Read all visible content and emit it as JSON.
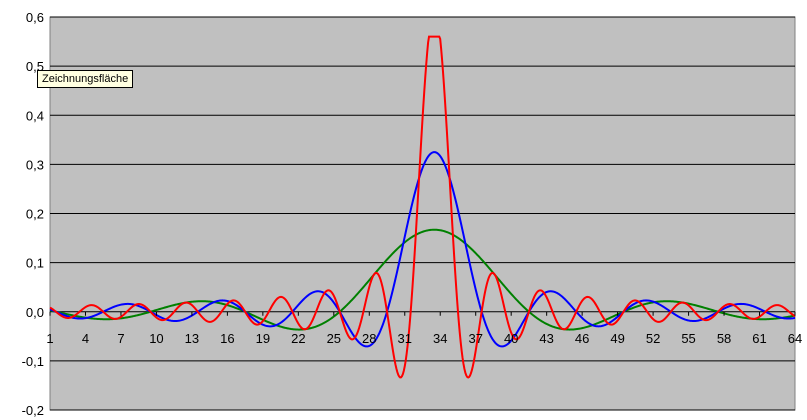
{
  "tooltip": {
    "text": "Zeichnungsfläche"
  },
  "chart_data": {
    "type": "line",
    "title": "",
    "xlabel": "",
    "ylabel": "",
    "x_range": [
      1,
      64
    ],
    "x_tick_labels": [
      "1",
      "4",
      "7",
      "10",
      "13",
      "16",
      "19",
      "22",
      "25",
      "28",
      "31",
      "34",
      "37",
      "40",
      "43",
      "46",
      "49",
      "52",
      "55",
      "58",
      "61",
      "64"
    ],
    "ylim": [
      -0.2,
      0.6
    ],
    "y_tick_labels": [
      "-0,2",
      "-0,1",
      "0,0",
      "0,1",
      "0,2",
      "0,3",
      "0,4",
      "0,5",
      "0,6"
    ],
    "grid": "horizontal",
    "plot_background": "#c0c0c0",
    "gridline_color": "#000000",
    "legend": "none",
    "series": [
      {
        "color": "#008000",
        "peak_x": 33.5,
        "peak_y": 0.167,
        "frequency": 0.125,
        "note_shape": "sinc"
      },
      {
        "color": "#0000ff",
        "peak_x": 33.5,
        "peak_y": 0.325,
        "frequency": 0.25,
        "note_shape": "sinc"
      },
      {
        "color": "#ff0000",
        "peak_x": 33.5,
        "peak_y": 0.56,
        "frequency": 0.5,
        "note_shape": "sinc-clipped"
      }
    ]
  }
}
